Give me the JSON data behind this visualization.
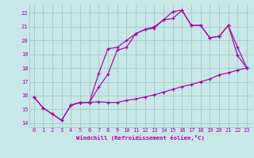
{
  "xlabel": "Windchill (Refroidissement éolien,°C)",
  "bg_color": "#c8e8e8",
  "grid_color": "#a8cccc",
  "line_color": "#aa00aa",
  "xlim": [
    -0.5,
    23.5
  ],
  "ylim": [
    13.7,
    22.6
  ],
  "yticks": [
    14,
    15,
    16,
    17,
    18,
    19,
    20,
    21,
    22
  ],
  "xticks": [
    0,
    1,
    2,
    3,
    4,
    5,
    6,
    7,
    8,
    9,
    10,
    11,
    12,
    13,
    14,
    15,
    16,
    17,
    18,
    19,
    20,
    21,
    22,
    23
  ],
  "curve1_x": [
    0,
    1,
    2,
    3,
    4,
    5,
    6,
    7,
    8,
    9,
    10,
    11,
    12,
    13,
    14,
    15,
    16,
    17,
    18,
    19,
    20,
    21,
    22,
    23
  ],
  "curve1_y": [
    15.9,
    15.1,
    14.65,
    14.2,
    15.3,
    15.5,
    15.5,
    15.55,
    15.5,
    15.5,
    15.65,
    15.75,
    15.9,
    16.05,
    16.25,
    16.45,
    16.65,
    16.8,
    17.0,
    17.2,
    17.5,
    17.65,
    17.85,
    18.0
  ],
  "curve2_x": [
    0,
    1,
    2,
    3,
    4,
    5,
    6,
    7,
    8,
    9,
    10,
    11,
    12,
    13,
    14,
    15,
    16,
    17,
    18,
    19,
    20,
    21,
    22,
    23
  ],
  "curve2_y": [
    15.9,
    15.1,
    14.65,
    14.2,
    15.3,
    15.5,
    15.5,
    17.6,
    19.4,
    19.5,
    20.0,
    20.5,
    20.8,
    21.0,
    21.5,
    21.6,
    22.2,
    21.1,
    21.1,
    20.2,
    20.3,
    21.1,
    18.9,
    18.0
  ],
  "curve3_x": [
    4,
    5,
    6,
    7,
    8,
    9,
    10,
    11,
    12,
    13,
    14,
    15,
    16,
    17,
    18,
    19,
    20,
    21,
    22,
    23
  ],
  "curve3_y": [
    15.3,
    15.5,
    15.5,
    16.6,
    17.55,
    19.3,
    19.5,
    20.5,
    20.8,
    20.9,
    21.5,
    22.1,
    22.2,
    21.1,
    21.1,
    20.2,
    20.3,
    21.1,
    19.5,
    18.0
  ]
}
